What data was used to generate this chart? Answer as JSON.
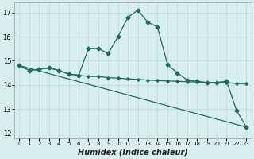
{
  "xlabel": "Humidex (Indice chaleur)",
  "bg_color": "#d9eeee",
  "grid_color": "#b8d8d8",
  "line_color": "#1e6b5e",
  "xlim": [
    -0.5,
    23.5
  ],
  "ylim": [
    11.8,
    17.4
  ],
  "yticks": [
    12,
    13,
    14,
    15,
    16,
    17
  ],
  "xticks": [
    0,
    1,
    2,
    3,
    4,
    5,
    6,
    7,
    8,
    9,
    10,
    11,
    12,
    13,
    14,
    15,
    16,
    17,
    18,
    19,
    20,
    21,
    22,
    23
  ],
  "line1_x": [
    0,
    1,
    2,
    3,
    4,
    5,
    6,
    7,
    8,
    9,
    10,
    11,
    12,
    13,
    14,
    15,
    16,
    17,
    18,
    19,
    20,
    21,
    22,
    23
  ],
  "line1_y": [
    14.8,
    14.6,
    14.65,
    14.7,
    14.6,
    14.45,
    14.4,
    15.5,
    15.5,
    15.3,
    16.0,
    16.8,
    17.1,
    16.6,
    16.4,
    14.85,
    14.5,
    14.2,
    14.15,
    14.1,
    14.1,
    14.15,
    12.95,
    12.25
  ],
  "line2_x": [
    0,
    1,
    2,
    3,
    4,
    5,
    6,
    7,
    8,
    9,
    10,
    11,
    12,
    13,
    14,
    15,
    16,
    17,
    18,
    19,
    20,
    21,
    22,
    23
  ],
  "line2_y": [
    14.8,
    14.6,
    14.65,
    14.7,
    14.6,
    14.45,
    14.4,
    14.35,
    14.35,
    14.3,
    14.28,
    14.25,
    14.23,
    14.2,
    14.18,
    14.16,
    14.15,
    14.13,
    14.12,
    14.1,
    14.1,
    14.1,
    14.05,
    14.05
  ],
  "line3_x": [
    0,
    23
  ],
  "line3_y": [
    14.8,
    12.25
  ]
}
